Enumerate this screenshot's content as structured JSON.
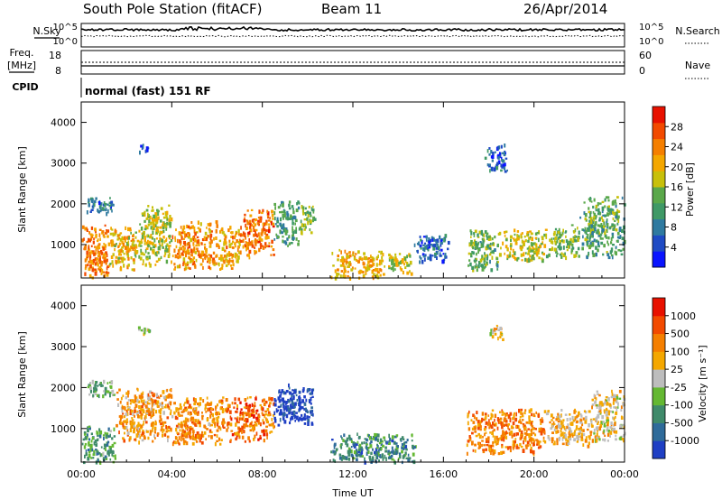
{
  "header": {
    "station": "South Pole Station (fitACF)",
    "beam": "Beam 11",
    "date": "26/Apr/2014"
  },
  "param_panels": {
    "nsky_label": "N.Sky",
    "nsearch_label": "N.Search",
    "freq_label_1": "Freq.",
    "freq_label_2": "[MHz]",
    "nave_label": "Nave",
    "cpid_label": "CPID",
    "cpid_text": "normal (fast) 151 RF",
    "noise_ticks": [
      "10^5",
      "10^0"
    ],
    "freq_ticks": [
      "18",
      "8"
    ],
    "nave_ticks": [
      "60",
      "0"
    ]
  },
  "chart_data": [
    {
      "type": "heatmap",
      "name": "power",
      "ylabel": "Slant Range [km]",
      "ylim": [
        180,
        4500
      ],
      "yticks": [
        1000,
        2000,
        3000,
        4000
      ],
      "xlim": [
        0,
        24
      ],
      "colorbar": {
        "label": "Power [dB]",
        "min": 0,
        "max": 32,
        "ticks": [
          "28",
          "24",
          "20",
          "16",
          "12",
          "8",
          "4"
        ],
        "colors": [
          "#0a14ff",
          "#1f4bc4",
          "#2f7aa0",
          "#3f9966",
          "#5aa84a",
          "#c8c00a",
          "#f4a700",
          "#f57f00",
          "#f24a00",
          "#e81100"
        ]
      },
      "regions": [
        {
          "x": [
            0.0,
            1.2
          ],
          "y": [
            200,
            1500
          ],
          "level": 0.75
        },
        {
          "x": [
            1.2,
            2.5
          ],
          "y": [
            400,
            1500
          ],
          "level": 0.62
        },
        {
          "x": [
            2.5,
            4.0
          ],
          "y": [
            500,
            2000
          ],
          "level": 0.55
        },
        {
          "x": [
            4.0,
            6.0
          ],
          "y": [
            400,
            1600
          ],
          "level": 0.72
        },
        {
          "x": [
            6.0,
            7.0
          ],
          "y": [
            400,
            1500
          ],
          "level": 0.66
        },
        {
          "x": [
            7.0,
            8.5
          ],
          "y": [
            700,
            1900
          ],
          "level": 0.78
        },
        {
          "x": [
            8.5,
            9.6
          ],
          "y": [
            1000,
            2100
          ],
          "level": 0.35
        },
        {
          "x": [
            9.6,
            10.3
          ],
          "y": [
            1300,
            2000
          ],
          "level": 0.45
        },
        {
          "x": [
            11.0,
            13.4
          ],
          "y": [
            180,
            900
          ],
          "level": 0.65
        },
        {
          "x": [
            13.4,
            14.6
          ],
          "y": [
            300,
            800
          ],
          "level": 0.55
        },
        {
          "x": [
            14.6,
            16.2
          ],
          "y": [
            600,
            1300
          ],
          "level": 0.2
        },
        {
          "x": [
            17.0,
            18.5
          ],
          "y": [
            400,
            1400
          ],
          "level": 0.42
        },
        {
          "x": [
            18.5,
            20.5
          ],
          "y": [
            600,
            1400
          ],
          "level": 0.55
        },
        {
          "x": [
            20.5,
            22.0
          ],
          "y": [
            700,
            1500
          ],
          "level": 0.45
        },
        {
          "x": [
            22.0,
            24.0
          ],
          "y": [
            700,
            2200
          ],
          "level": 0.4
        },
        {
          "x": [
            2.5,
            3.0
          ],
          "y": [
            3300,
            3500
          ],
          "level": 0.15
        },
        {
          "x": [
            17.8,
            18.8
          ],
          "y": [
            2800,
            3500
          ],
          "level": 0.18
        },
        {
          "x": [
            0.2,
            1.5
          ],
          "y": [
            1800,
            2200
          ],
          "level": 0.22
        }
      ]
    },
    {
      "type": "heatmap",
      "name": "velocity",
      "ylabel": "Slant Range [km]",
      "ylim": [
        180,
        4500
      ],
      "yticks": [
        1000,
        2000,
        3000,
        4000
      ],
      "xlim": [
        0,
        24
      ],
      "xticks": [
        "00:00",
        "04:00",
        "08:00",
        "12:00",
        "16:00",
        "20:00",
        "00:00"
      ],
      "xlabel": "Time UT",
      "colorbar": {
        "label": "Velocity [m s⁻¹]",
        "ticks": [
          "1000",
          "500",
          "100",
          "25",
          "-25",
          "-100",
          "-500",
          "-1000"
        ],
        "colors": [
          "#1f3fc4",
          "#2f6b9a",
          "#3f8a6a",
          "#64b832",
          "#bdbdbd",
          "#f4a700",
          "#f57f00",
          "#f24a00",
          "#e81100"
        ]
      },
      "regions": [
        {
          "x": [
            0.0,
            1.5
          ],
          "y": [
            200,
            1100
          ],
          "level": 0.3
        },
        {
          "x": [
            1.5,
            4.0
          ],
          "y": [
            700,
            2000
          ],
          "level": 0.66
        },
        {
          "x": [
            4.0,
            6.5
          ],
          "y": [
            600,
            1800
          ],
          "level": 0.7
        },
        {
          "x": [
            6.5,
            8.5
          ],
          "y": [
            700,
            1800
          ],
          "level": 0.78
        },
        {
          "x": [
            8.5,
            10.3
          ],
          "y": [
            1100,
            2100
          ],
          "level": 0.05
        },
        {
          "x": [
            11.0,
            14.8
          ],
          "y": [
            200,
            900
          ],
          "level": 0.25
        },
        {
          "x": [
            17.0,
            20.5
          ],
          "y": [
            400,
            1500
          ],
          "level": 0.72
        },
        {
          "x": [
            20.5,
            22.5
          ],
          "y": [
            600,
            1500
          ],
          "level": 0.6
        },
        {
          "x": [
            22.5,
            24.0
          ],
          "y": [
            700,
            2000
          ],
          "level": 0.55
        },
        {
          "x": [
            0.2,
            1.5
          ],
          "y": [
            1800,
            2200
          ],
          "level": 0.4
        },
        {
          "x": [
            18.0,
            18.6
          ],
          "y": [
            3200,
            3600
          ],
          "level": 0.55
        },
        {
          "x": [
            2.5,
            3.0
          ],
          "y": [
            3300,
            3500
          ],
          "level": 0.45
        }
      ]
    }
  ]
}
